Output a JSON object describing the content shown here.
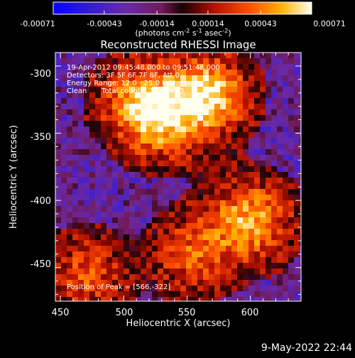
{
  "plot_title": "Reconstructed RHESSI Image",
  "colorbar": {
    "tick_labels": [
      "-0.00071",
      "-0.00043",
      "-0.00014",
      "0.00014",
      "0.00043",
      "0.00071"
    ],
    "unit_prefix": "(photons cm",
    "unit_exp1": "-2",
    "unit_mid1": " s",
    "unit_exp2": "-1",
    "unit_mid2": " asec",
    "unit_exp3": "-2",
    "unit_suffix": ")"
  },
  "axes": {
    "xlabel": "Heliocentric X (arcsec)",
    "ylabel": "Heliocentric Y (arcsec)",
    "xticks": [
      "450",
      "500",
      "550",
      "600"
    ],
    "yticks": [
      "-300",
      "-350",
      "-400",
      "-450"
    ]
  },
  "annotations": {
    "time_range": "19-Apr-2012 09:45:48.000 to 09:51:48.000",
    "detectors": "Detectors: 3F 5F 6F 7F 8F, Att 0",
    "energy_range": "Energy Range: 12.0 - 25.0 keV",
    "method": "Clean",
    "total_counts": "Total counts: 7.35E+03",
    "peak_position": "Position of Peak = [566,-322]"
  },
  "footer_date": "9-May-2022 22:44",
  "colors": {
    "background": "#000000",
    "text": "#ffffff"
  },
  "chart_data": {
    "type": "heatmap",
    "title": "Reconstructed RHESSI Image",
    "xlabel": "Heliocentric X (arcsec)",
    "ylabel": "Heliocentric Y (arcsec)",
    "xlim": [
      446,
      640
    ],
    "ylim": [
      -475,
      -290
    ],
    "colorbar_range": [
      -0.00071,
      0.00071
    ],
    "peak": [
      566,
      -322
    ],
    "sources": [
      {
        "x": 566,
        "y": -322,
        "level": 1.0
      },
      {
        "x": 530,
        "y": -340,
        "level": 0.75
      },
      {
        "x": 510,
        "y": -325,
        "level": 0.6
      },
      {
        "x": 600,
        "y": -415,
        "level": 0.85
      },
      {
        "x": 555,
        "y": -440,
        "level": 0.55
      },
      {
        "x": 470,
        "y": -455,
        "level": 0.5
      }
    ]
  }
}
